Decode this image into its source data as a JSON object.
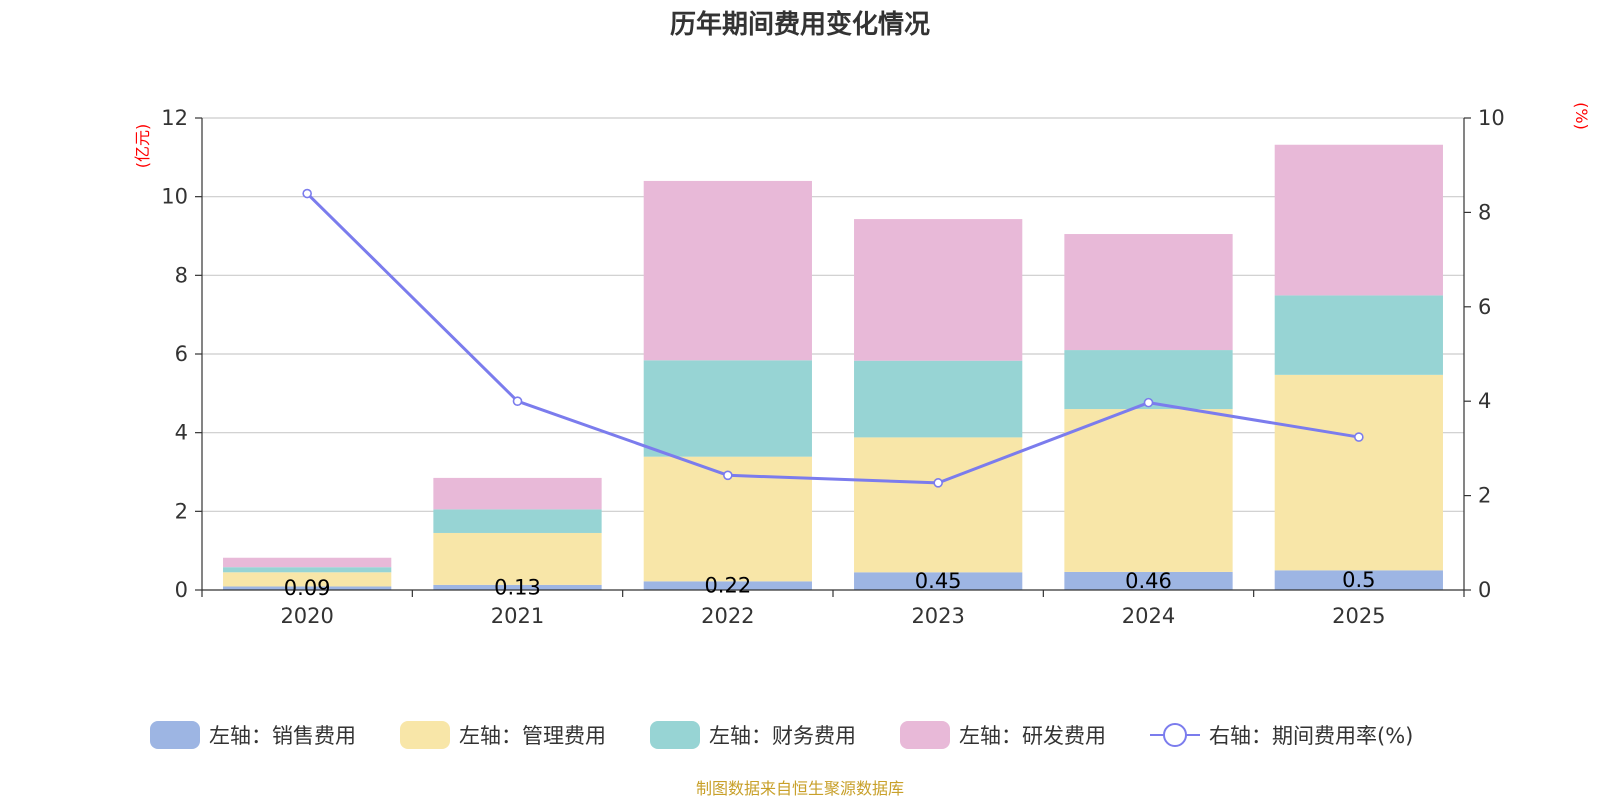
{
  "chart_data": {
    "type": "bar",
    "title": "历年期间费用变化情况",
    "categories": [
      "2020",
      "2021",
      "2022",
      "2023",
      "2024",
      "2025"
    ],
    "left_unit": "(亿元)",
    "right_unit": "(%)",
    "ylim_left": [
      0,
      12
    ],
    "yticks_left": [
      0,
      2,
      4,
      6,
      8,
      10,
      12
    ],
    "ylim_right": [
      0,
      10
    ],
    "yticks_right": [
      0,
      2,
      4,
      6,
      8,
      10
    ],
    "grid": true,
    "legend_position": "bottom",
    "series": [
      {
        "name": "左轴：销售费用",
        "type": "bar",
        "axis": "left",
        "color": "#9db5e3",
        "values": [
          0.09,
          0.13,
          0.22,
          0.45,
          0.46,
          0.5
        ],
        "labels": [
          "0.09",
          "0.13",
          "0.22",
          "0.45",
          "0.46",
          "0.5"
        ]
      },
      {
        "name": "左轴：管理费用",
        "type": "bar",
        "axis": "left",
        "color": "#f8e6a8",
        "values": [
          0.36,
          1.32,
          3.17,
          3.43,
          4.14,
          4.97
        ]
      },
      {
        "name": "左轴：财务费用",
        "type": "bar",
        "axis": "left",
        "color": "#97d4d4",
        "values": [
          0.13,
          0.6,
          2.45,
          1.95,
          1.5,
          2.02
        ]
      },
      {
        "name": "左轴：研发费用",
        "type": "bar",
        "axis": "left",
        "color": "#e8b9d8",
        "values": [
          0.24,
          0.8,
          4.56,
          3.6,
          2.95,
          3.83
        ]
      },
      {
        "name": "右轴：期间费用率(%)",
        "type": "line",
        "axis": "right",
        "color": "#7b7ced",
        "values": [
          8.4,
          4.0,
          2.43,
          2.27,
          3.97,
          3.24
        ]
      }
    ],
    "source_note": "制图数据来自恒生聚源数据库"
  }
}
